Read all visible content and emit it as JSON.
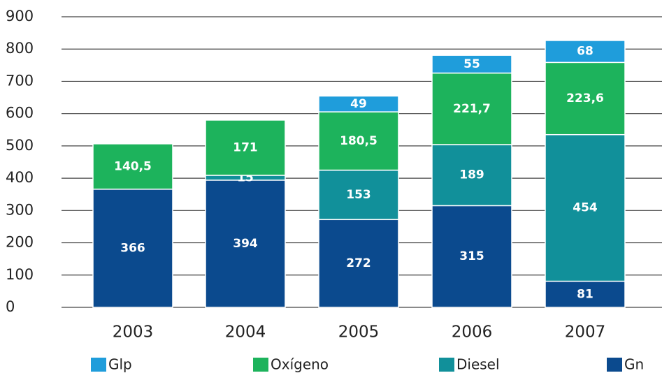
{
  "chart_data": {
    "type": "stacked-bar",
    "categories": [
      "2003",
      "2004",
      "2005",
      "2006",
      "2007"
    ],
    "series": [
      {
        "name": "Gn",
        "color": "#0b4a8e",
        "values": [
          366,
          394,
          272,
          315,
          81
        ]
      },
      {
        "name": "Diesel",
        "color": "#11909a",
        "values": [
          null,
          15,
          153,
          189,
          454
        ]
      },
      {
        "name": "Oxígeno",
        "color": "#1db35c",
        "values": [
          140.5,
          171,
          180.5,
          221.7,
          223.6
        ],
        "value_labels": [
          "140,5",
          "171",
          "180,5",
          "221,7",
          "223,6"
        ]
      },
      {
        "name": "Glp",
        "color": "#1f9ddb",
        "values": [
          null,
          null,
          49,
          55,
          68
        ]
      }
    ],
    "legend_order": [
      "Glp",
      "Oxígeno",
      "Diesel",
      "Gn"
    ],
    "ylim": [
      0,
      900
    ],
    "yticks": [
      0,
      100,
      200,
      300,
      400,
      500,
      600,
      700,
      800,
      900
    ],
    "grid": true
  }
}
